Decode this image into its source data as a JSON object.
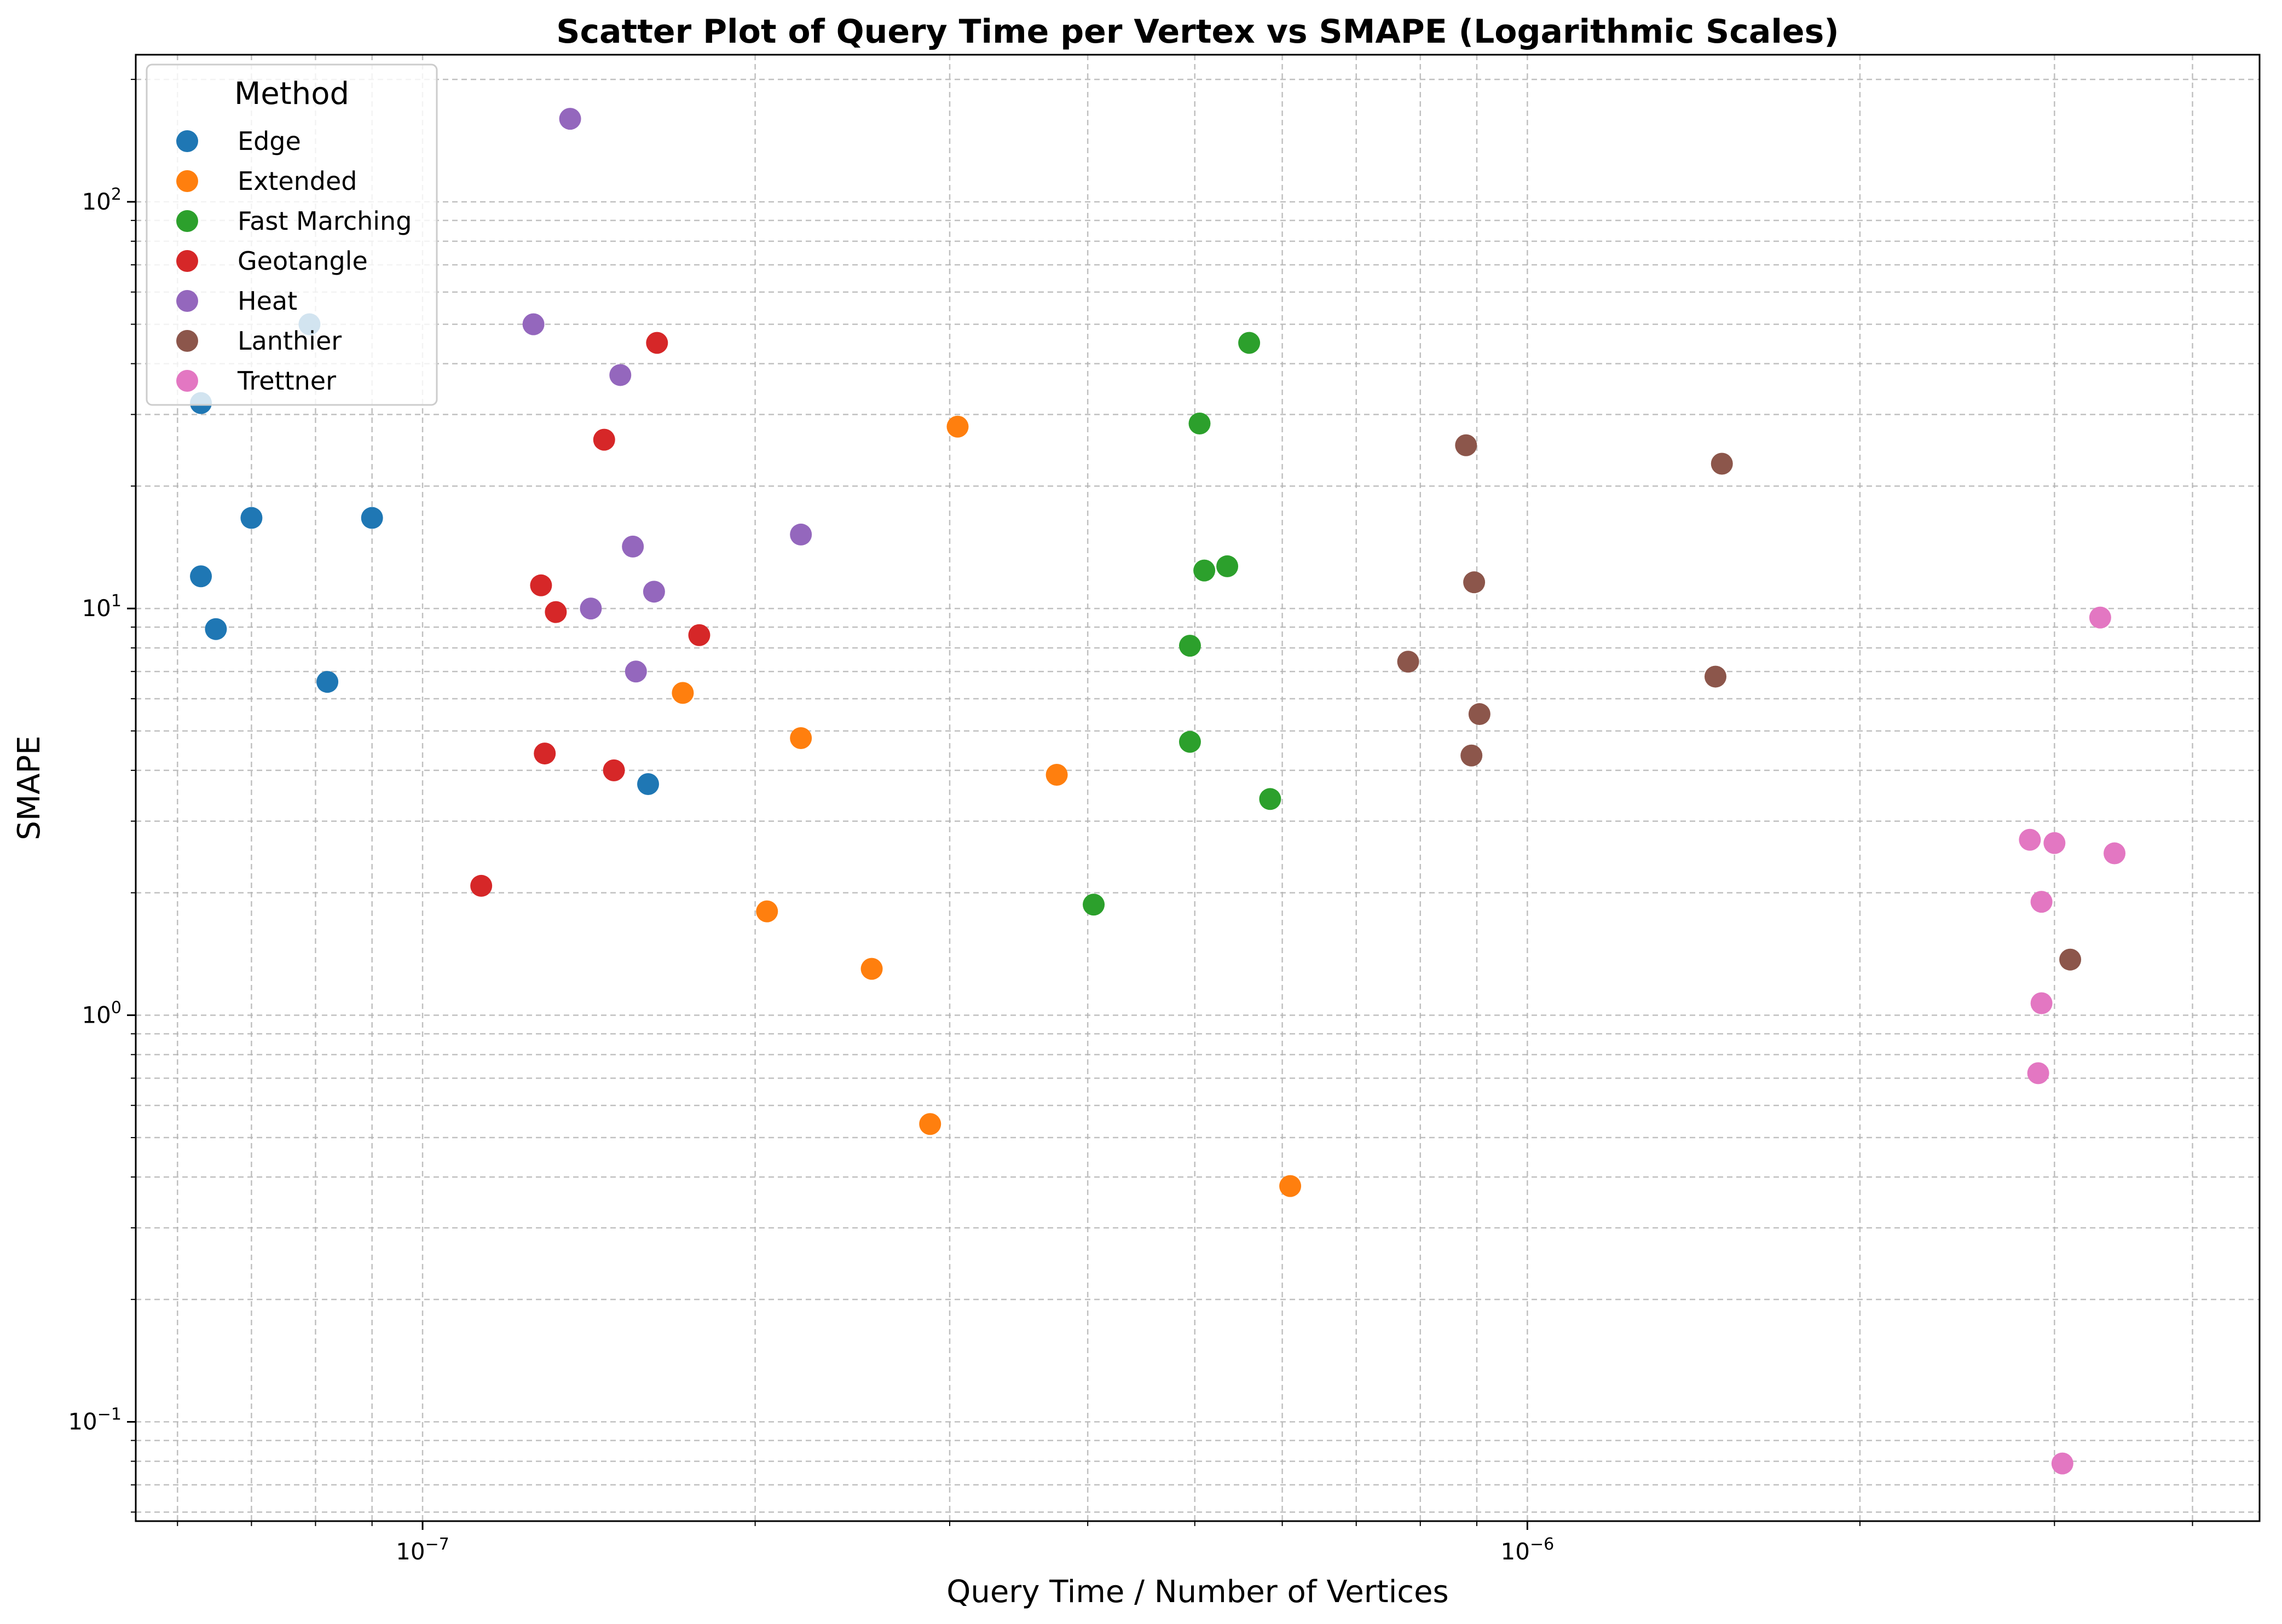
{
  "chart_data": {
    "type": "scatter",
    "title": "Scatter Plot of Query Time per Vertex vs SMAPE (Logarithmic Scales)",
    "xlabel": "Query Time / Number of Vertices",
    "ylabel": "SMAPE",
    "xscale": "log",
    "yscale": "log",
    "xlim": [
      5.5e-08,
      4.6e-06
    ],
    "ylim": [
      0.057,
      230
    ],
    "x_ticks": [
      {
        "base": "10",
        "exp": "−7",
        "value": 1e-07
      },
      {
        "base": "10",
        "exp": "−6",
        "value": 1e-06
      }
    ],
    "y_ticks": [
      {
        "base": "10",
        "exp": "−1",
        "value": 0.1
      },
      {
        "base": "10",
        "exp": "0",
        "value": 1
      },
      {
        "base": "10",
        "exp": "1",
        "value": 10
      },
      {
        "base": "10",
        "exp": "2",
        "value": 100
      }
    ],
    "grid": true,
    "legend": {
      "title": "Method",
      "placement": "top-left"
    },
    "series": [
      {
        "name": "Edge",
        "color": "#1f77b4",
        "points": [
          [
            7.9e-08,
            50
          ],
          [
            6.3e-08,
            32
          ],
          [
            6.3e-08,
            12
          ],
          [
            6.5e-08,
            8.9
          ],
          [
            7e-08,
            16.7
          ],
          [
            9e-08,
            16.7
          ],
          [
            8.2e-08,
            6.6
          ],
          [
            1.6e-07,
            3.7
          ]
        ]
      },
      {
        "name": "Extended",
        "color": "#ff7f0e",
        "points": [
          [
            3.05e-07,
            28
          ],
          [
            1.72e-07,
            6.2
          ],
          [
            2.2e-07,
            4.8
          ],
          [
            3.75e-07,
            3.9
          ],
          [
            2.05e-07,
            1.8
          ],
          [
            2.55e-07,
            1.3
          ],
          [
            2.88e-07,
            0.54
          ],
          [
            6.1e-07,
            0.38
          ]
        ]
      },
      {
        "name": "Fast Marching",
        "color": "#2ca02c",
        "points": [
          [
            5.6e-07,
            45
          ],
          [
            5.05e-07,
            28.5
          ],
          [
            5.1e-07,
            12.4
          ],
          [
            5.35e-07,
            12.7
          ],
          [
            4.95e-07,
            8.1
          ],
          [
            4.95e-07,
            4.7
          ],
          [
            5.85e-07,
            3.4
          ],
          [
            4.05e-07,
            1.87
          ]
        ]
      },
      {
        "name": "Geotangle",
        "color": "#d62728",
        "points": [
          [
            1.63e-07,
            45
          ],
          [
            1.46e-07,
            26
          ],
          [
            1.28e-07,
            11.4
          ],
          [
            1.32e-07,
            9.8
          ],
          [
            1.78e-07,
            8.6
          ],
          [
            1.29e-07,
            4.4
          ],
          [
            1.49e-07,
            4.0
          ],
          [
            1.13e-07,
            2.08
          ]
        ]
      },
      {
        "name": "Heat",
        "color": "#9467bd",
        "points": [
          [
            1.36e-07,
            160
          ],
          [
            1.26e-07,
            50
          ],
          [
            1.51e-07,
            37.5
          ],
          [
            2.2e-07,
            15.2
          ],
          [
            1.55e-07,
            14.2
          ],
          [
            1.62e-07,
            11
          ],
          [
            1.42e-07,
            10
          ],
          [
            1.56e-07,
            7
          ]
        ]
      },
      {
        "name": "Lanthier",
        "color": "#8c564b",
        "points": [
          [
            8.8e-07,
            25.2
          ],
          [
            1.5e-06,
            22.7
          ],
          [
            8.95e-07,
            11.6
          ],
          [
            7.8e-07,
            7.4
          ],
          [
            1.48e-06,
            6.8
          ],
          [
            9.05e-07,
            5.5
          ],
          [
            8.9e-07,
            4.35
          ],
          [
            3.1e-06,
            1.37
          ]
        ]
      },
      {
        "name": "Trettner",
        "color": "#e377c2",
        "points": [
          [
            3.3e-06,
            9.5
          ],
          [
            2.85e-06,
            2.7
          ],
          [
            3e-06,
            2.65
          ],
          [
            3.4e-06,
            2.5
          ],
          [
            2.92e-06,
            1.9
          ],
          [
            2.92e-06,
            1.07
          ],
          [
            2.9e-06,
            0.72
          ],
          [
            3.05e-06,
            0.079
          ]
        ]
      }
    ]
  }
}
